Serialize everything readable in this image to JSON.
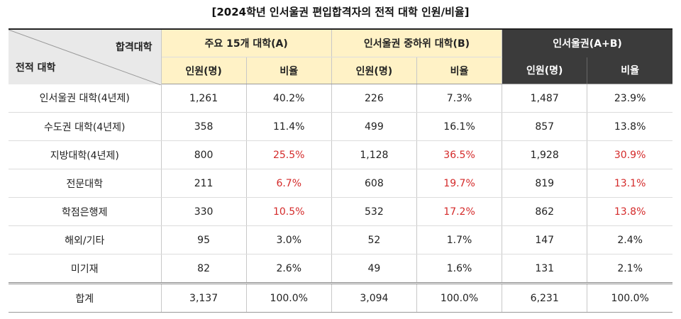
{
  "title": "[2024학년 인서울권 편입합격자의 전적 대학 인원/비율]",
  "table": {
    "corner": {
      "top": "합격대학",
      "bottom": "전적 대학"
    },
    "groups": [
      "주요 15개 대학(A)",
      "인서울권 중하위 대학(B)",
      "인서울권(A+B)"
    ],
    "subheaders": [
      "인원(명)",
      "비율",
      "인원(명)",
      "비율",
      "인원(명)",
      "비율"
    ],
    "rows": [
      [
        "인서울권 대학(4년제)",
        "1,261",
        "40.2%",
        "226",
        "7.3%",
        "1,487",
        "23.9%"
      ],
      [
        "수도권 대학(4년제)",
        "358",
        "11.4%",
        "499",
        "16.1%",
        "857",
        "13.8%"
      ],
      [
        "지방대학(4년제)",
        "800",
        "25.5%",
        "1,128",
        "36.5%",
        "1,928",
        "30.9%"
      ],
      [
        "전문대학",
        "211",
        "6.7%",
        "608",
        "19.7%",
        "819",
        "13.1%"
      ],
      [
        "학점은행제",
        "330",
        "10.5%",
        "532",
        "17.2%",
        "862",
        "13.8%"
      ],
      [
        "해외/기타",
        "95",
        "3.0%",
        "52",
        "1.7%",
        "147",
        "2.4%"
      ],
      [
        "미기재",
        "82",
        "2.6%",
        "49",
        "1.6%",
        "131",
        "2.1%"
      ],
      [
        "합계",
        "3,137",
        "100.0%",
        "3,094",
        "100.0%",
        "6,231",
        "100.0%"
      ]
    ]
  }
}
